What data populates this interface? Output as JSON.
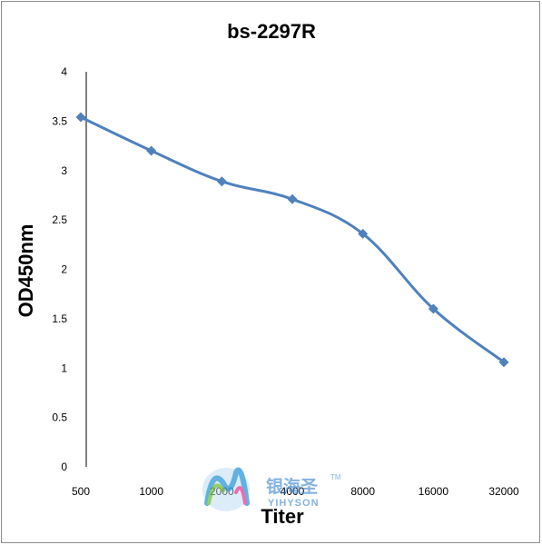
{
  "chart_data": {
    "type": "line",
    "title": "bs-2297R",
    "xlabel": "Titer",
    "ylabel": "OD450nm",
    "categories": [
      "500",
      "1000",
      "2000",
      "4000",
      "8000",
      "16000",
      "32000"
    ],
    "series": [
      {
        "values": [
          3.54,
          3.2,
          2.89,
          2.71,
          2.36,
          1.6,
          1.06
        ]
      }
    ],
    "ylim": [
      0,
      4
    ],
    "yticks": [
      "0",
      "0.5",
      "1",
      "1.5",
      "2",
      "2.5",
      "3",
      "3.5",
      "4"
    ],
    "grid": false,
    "legend": "none",
    "line_color": "#4f81bd",
    "marker": "diamond"
  },
  "watermark": {
    "chinese": "银海圣",
    "english": "YIHYSON",
    "tm": "TM"
  }
}
